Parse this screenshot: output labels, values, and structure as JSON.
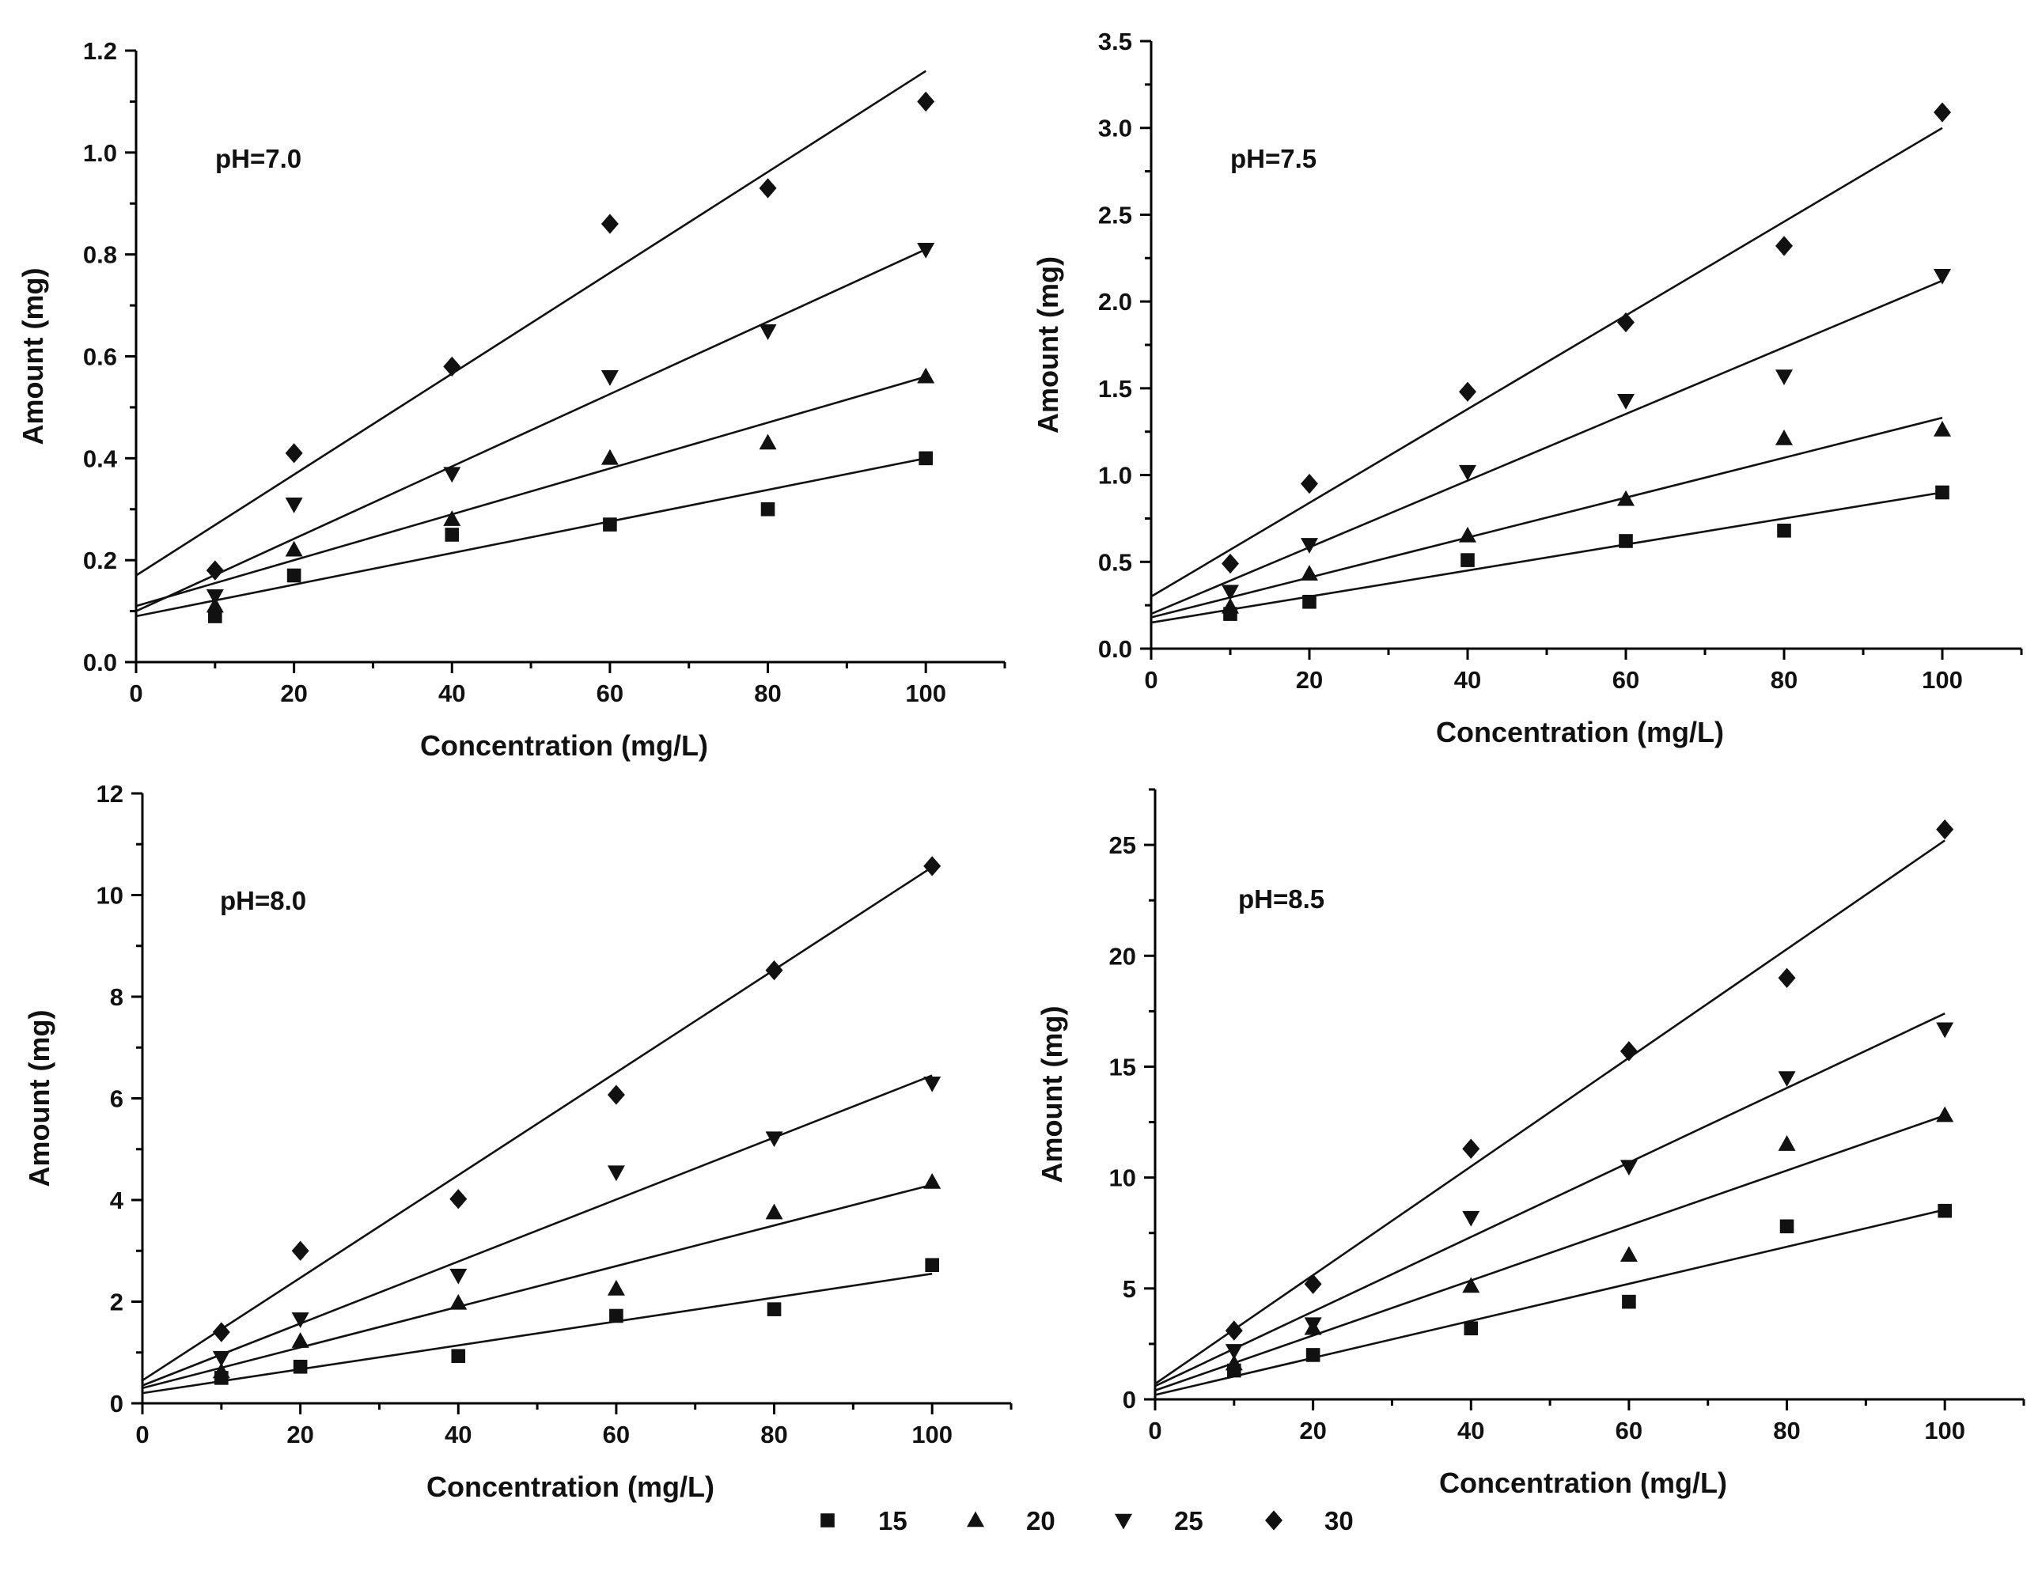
{
  "figure": {
    "legend": [
      {
        "marker": "square",
        "label": "15"
      },
      {
        "marker": "triangle-up",
        "label": "20"
      },
      {
        "marker": "triangle-down",
        "label": "25"
      },
      {
        "marker": "diamond",
        "label": "30"
      }
    ]
  },
  "chart_data": [
    {
      "type": "scatter",
      "panel_label": "pH=7.0",
      "xlabel": "Concentration (mg/L)",
      "ylabel": "Amount (mg)",
      "xlim": [
        0,
        110
      ],
      "ylim": [
        0,
        1.2
      ],
      "xticks": [
        0,
        20,
        40,
        60,
        80,
        100
      ],
      "xtick_labels": [
        "0",
        "20",
        "40",
        "60",
        "80",
        "100"
      ],
      "yticks": [
        0,
        0.2,
        0.4,
        0.6,
        0.8,
        1.0,
        1.2
      ],
      "ytick_labels": [
        "0.0",
        "0.2",
        "0.4",
        "0.6",
        "0.8",
        "1.0",
        "1.2"
      ],
      "x": [
        10,
        20,
        40,
        60,
        80,
        100
      ],
      "series": [
        {
          "name": "15",
          "marker": "square",
          "values": [
            0.09,
            0.17,
            0.25,
            0.27,
            0.3,
            0.4
          ],
          "fit": [
            0.09,
            0.0031
          ]
        },
        {
          "name": "20",
          "marker": "triangle-up",
          "values": [
            0.11,
            0.22,
            0.28,
            0.4,
            0.43,
            0.56
          ],
          "fit": [
            0.11,
            0.0045
          ]
        },
        {
          "name": "25",
          "marker": "triangle-down",
          "values": [
            0.13,
            0.31,
            0.37,
            0.56,
            0.65,
            0.81
          ],
          "fit": [
            0.1,
            0.0071
          ]
        },
        {
          "name": "30",
          "marker": "diamond",
          "values": [
            0.18,
            0.41,
            0.58,
            0.86,
            0.93,
            1.1
          ],
          "fit": [
            0.17,
            0.0099
          ]
        }
      ]
    },
    {
      "type": "scatter",
      "panel_label": "pH=7.5",
      "xlabel": "Concentration (mg/L)",
      "ylabel": "Amount (mg)",
      "xlim": [
        0,
        110
      ],
      "ylim": [
        0,
        3.5
      ],
      "xticks": [
        0,
        20,
        40,
        60,
        80,
        100
      ],
      "xtick_labels": [
        "0",
        "20",
        "40",
        "60",
        "80",
        "100"
      ],
      "yticks": [
        0,
        0.5,
        1.0,
        1.5,
        2.0,
        2.5,
        3.0,
        3.5
      ],
      "ytick_labels": [
        "0.0",
        "0.5",
        "1.0",
        "1.5",
        "2.0",
        "2.5",
        "3.0",
        "3.5"
      ],
      "x": [
        10,
        20,
        40,
        60,
        80,
        100
      ],
      "series": [
        {
          "name": "15",
          "marker": "square",
          "values": [
            0.2,
            0.27,
            0.51,
            0.62,
            0.68,
            0.9
          ],
          "fit": [
            0.15,
            0.0075
          ]
        },
        {
          "name": "20",
          "marker": "triangle-up",
          "values": [
            0.24,
            0.43,
            0.65,
            0.86,
            1.21,
            1.26
          ],
          "fit": [
            0.18,
            0.0115
          ]
        },
        {
          "name": "25",
          "marker": "triangle-down",
          "values": [
            0.33,
            0.6,
            1.02,
            1.43,
            1.57,
            2.15
          ],
          "fit": [
            0.2,
            0.0192
          ]
        },
        {
          "name": "30",
          "marker": "diamond",
          "values": [
            0.49,
            0.95,
            1.48,
            1.88,
            2.32,
            3.09
          ],
          "fit": [
            0.3,
            0.027
          ]
        }
      ]
    },
    {
      "type": "scatter",
      "panel_label": "pH=8.0",
      "xlabel": "Concentration (mg/L)",
      "ylabel": "Amount (mg)",
      "xlim": [
        0,
        110
      ],
      "ylim": [
        0,
        12
      ],
      "xticks": [
        0,
        20,
        40,
        60,
        80,
        100
      ],
      "xtick_labels": [
        "0",
        "20",
        "40",
        "60",
        "80",
        "100"
      ],
      "yticks": [
        0,
        2,
        4,
        6,
        8,
        10,
        12
      ],
      "ytick_labels": [
        "0",
        "2",
        "4",
        "6",
        "8",
        "10",
        "12"
      ],
      "x": [
        10,
        20,
        40,
        60,
        80,
        100
      ],
      "series": [
        {
          "name": "15",
          "marker": "square",
          "values": [
            0.5,
            0.72,
            0.93,
            1.72,
            1.85,
            2.72
          ],
          "fit": [
            0.2,
            0.0235
          ]
        },
        {
          "name": "20",
          "marker": "triangle-up",
          "values": [
            0.62,
            1.22,
            1.97,
            2.25,
            3.75,
            4.35
          ],
          "fit": [
            0.3,
            0.04
          ]
        },
        {
          "name": "25",
          "marker": "triangle-down",
          "values": [
            0.9,
            1.66,
            2.52,
            4.55,
            5.22,
            6.3
          ],
          "fit": [
            0.35,
            0.061
          ]
        },
        {
          "name": "30",
          "marker": "diamond",
          "values": [
            1.4,
            3.0,
            4.02,
            6.07,
            8.52,
            10.57
          ],
          "fit": [
            0.45,
            0.101
          ]
        }
      ]
    },
    {
      "type": "scatter",
      "panel_label": "pH=8.5",
      "xlabel": "Concentration (mg/L)",
      "ylabel": "Amount (mg)",
      "xlim": [
        0,
        110
      ],
      "ylim": [
        0,
        27.5
      ],
      "xticks": [
        0,
        20,
        40,
        60,
        80,
        100
      ],
      "xtick_labels": [
        "0",
        "20",
        "40",
        "60",
        "80",
        "100"
      ],
      "yticks": [
        0,
        5,
        10,
        15,
        20,
        25
      ],
      "ytick_labels": [
        "0",
        "5",
        "10",
        "15",
        "20",
        "25"
      ],
      "x": [
        10,
        20,
        40,
        60,
        80,
        100
      ],
      "series": [
        {
          "name": "15",
          "marker": "square",
          "values": [
            1.3,
            2.0,
            3.2,
            4.4,
            7.8,
            8.5
          ],
          "fit": [
            0.2,
            0.0835
          ]
        },
        {
          "name": "20",
          "marker": "triangle-up",
          "values": [
            1.6,
            3.2,
            5.1,
            6.5,
            11.5,
            12.8
          ],
          "fit": [
            0.4,
            0.124
          ]
        },
        {
          "name": "25",
          "marker": "triangle-down",
          "values": [
            2.2,
            3.4,
            8.2,
            10.5,
            14.5,
            16.7
          ],
          "fit": [
            0.6,
            0.168
          ]
        },
        {
          "name": "30",
          "marker": "diamond",
          "values": [
            3.1,
            5.2,
            11.3,
            15.7,
            19.0,
            25.7
          ],
          "fit": [
            0.7,
            0.245
          ]
        }
      ]
    }
  ]
}
